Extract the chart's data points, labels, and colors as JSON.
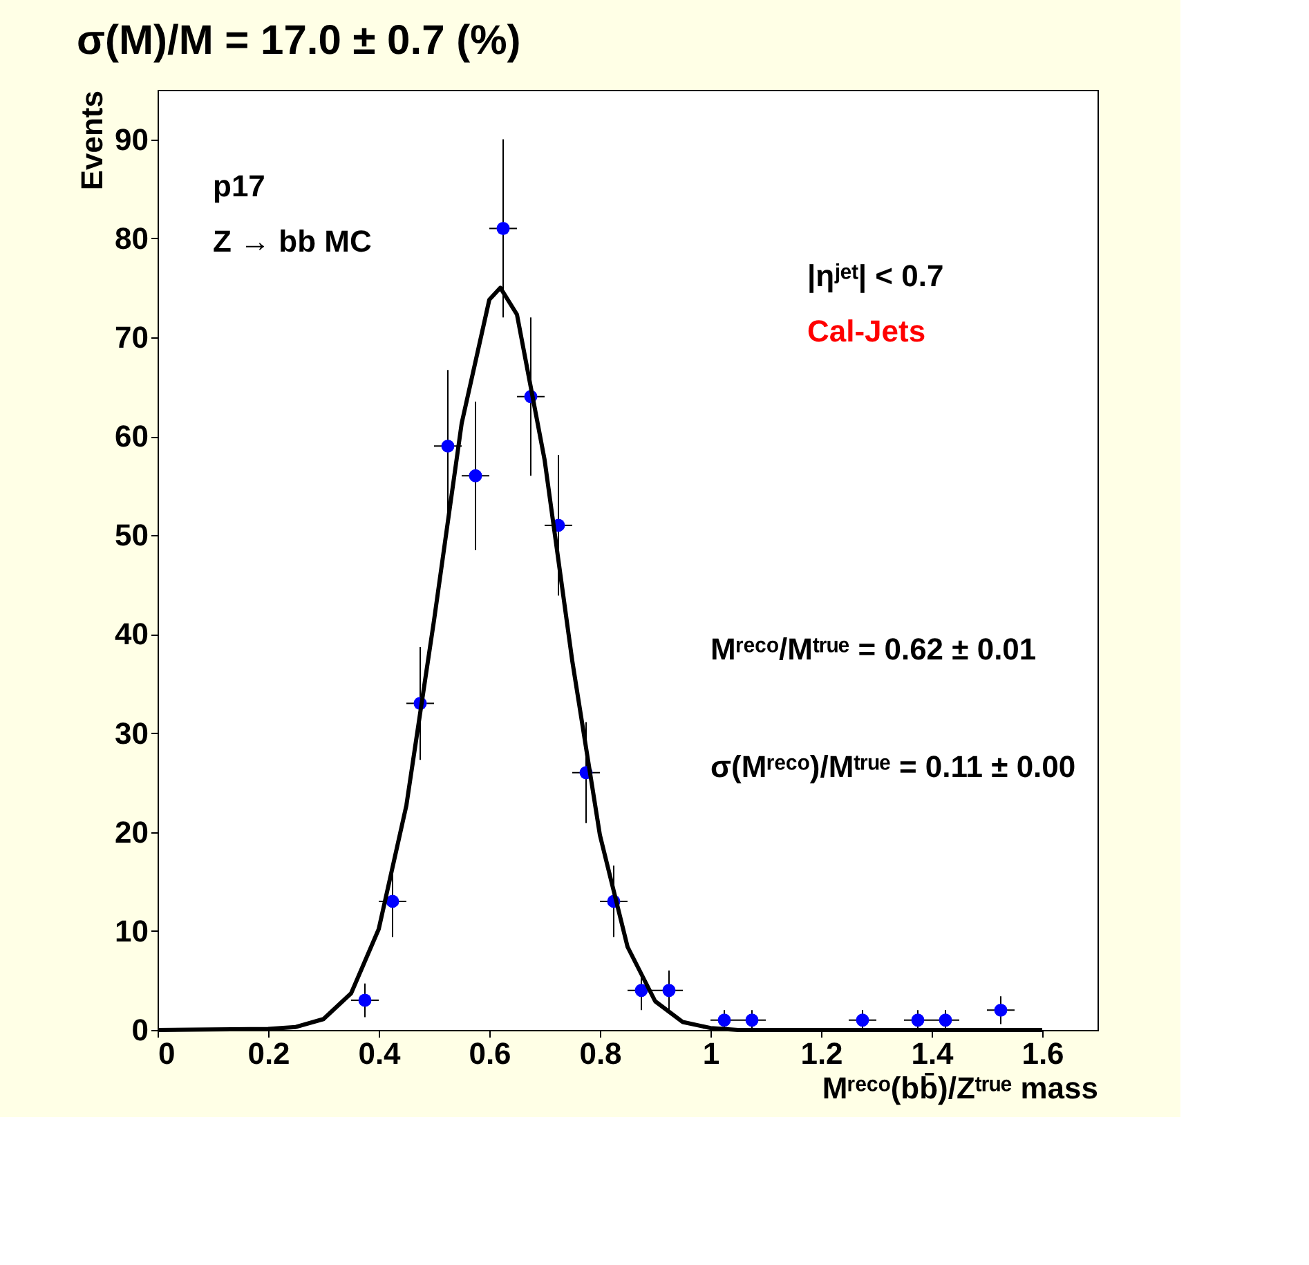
{
  "chart_data": {
    "type": "scatter",
    "title": "σ(M)/M = 17.0 ± 0.7 (%)",
    "xlabel": "Mʳᵉᶜᵒ(bb̄)/Zᵗʳᵘᵉ mass",
    "ylabel": "Events",
    "xlim": [
      0,
      1.7
    ],
    "xticks": [
      {
        "value": 0,
        "label": "0"
      },
      0.2,
      0.4,
      0.6,
      0.8,
      {
        "value": 1,
        "label": "1"
      },
      1.2,
      1.4,
      1.6
    ],
    "ylim": [
      0,
      95
    ],
    "yticks": [
      0,
      10,
      20,
      30,
      40,
      50,
      60,
      70,
      80,
      90
    ],
    "grid": false,
    "series": [
      {
        "color": "#0000ff",
        "marker": "circle",
        "x": [
          0.375,
          0.425,
          0.475,
          0.525,
          0.575,
          0.625,
          0.675,
          0.725,
          0.775,
          0.825,
          0.875,
          0.925,
          1.025,
          1.075,
          1.275,
          1.375,
          1.425,
          1.525
        ],
        "values": [
          3,
          13,
          33,
          59,
          56,
          81,
          64,
          51,
          26,
          13,
          4,
          4,
          1,
          1,
          1,
          1,
          1,
          2
        ],
        "errors": [
          1.7,
          3.6,
          5.7,
          7.7,
          7.5,
          9,
          8,
          7.1,
          5.1,
          3.6,
          2,
          2,
          1,
          1,
          1,
          1,
          1,
          1.4
        ],
        "xerrors": [
          0.025,
          0.025,
          0.025,
          0.025,
          0.025,
          0.025,
          0.025,
          0.025,
          0.025,
          0.025,
          0.025,
          0.025,
          0.025,
          0.025,
          0.025,
          0.025,
          0.025,
          0.025
        ]
      },
      {
        "type": "line",
        "color": "#000000",
        "line_style": "solid",
        "x": [
          0,
          0.2,
          0.25,
          0.3,
          0.35,
          0.4,
          0.45,
          0.5,
          0.55,
          0.6,
          0.62,
          0.65,
          0.7,
          0.75,
          0.8,
          0.85,
          0.9,
          0.95,
          1.0,
          1.05,
          1.6
        ],
        "values": [
          0,
          0.1,
          0.3,
          1.1,
          3.7,
          10.2,
          22.7,
          41.4,
          61.3,
          73.8,
          75,
          72.3,
          57.6,
          37.3,
          19.7,
          8.4,
          2.9,
          0.8,
          0.2,
          0,
          0
        ]
      }
    ],
    "annotations": [
      "p17",
      "Z → bb MC",
      "|ηʲᵉᵗ| < 0.7",
      "Cal-Jets",
      "Mʳᵉᶜᵒ/Mᵗʳᵘᵉ = 0.62 ± 0.01",
      "σ(Mʳᵉᶜᵒ)/Mᵗʳᵘᵉ = 0.11 ± 0.00"
    ]
  }
}
